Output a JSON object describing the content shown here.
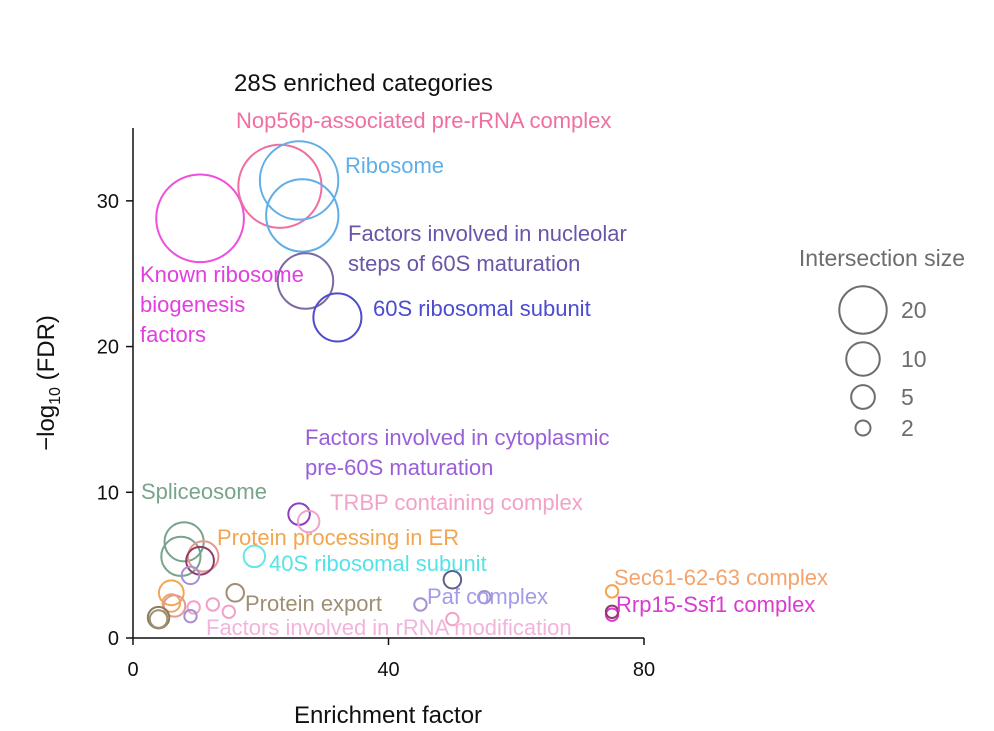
{
  "chart_data": {
    "type": "scatter",
    "title": "28S enriched categories",
    "xlabel": "Enrichment factor",
    "ylabel": "−log",
    "ylabel_sub": "10",
    "ylabel_tail": " (FDR)",
    "xlim": [
      0,
      80
    ],
    "ylim": [
      0,
      35
    ],
    "xticks": [
      0,
      40,
      80
    ],
    "yticks": [
      0,
      10,
      20,
      30
    ],
    "grid": false,
    "legend": {
      "title": "Intersection size",
      "position": "right",
      "sizes": [
        {
          "label": "20",
          "value": 20
        },
        {
          "label": "10",
          "value": 10
        },
        {
          "label": "5",
          "value": 5
        },
        {
          "label": "2",
          "value": 2
        }
      ]
    },
    "points": [
      {
        "x": 10.5,
        "y": 28.8,
        "size": 50,
        "color": "#ef4fdb"
      },
      {
        "x": 23,
        "y": 31,
        "size": 45,
        "color": "#ef6fa2"
      },
      {
        "x": 26,
        "y": 31.4,
        "size": 40,
        "color": "#60aee8"
      },
      {
        "x": 26.5,
        "y": 29,
        "size": 34,
        "color": "#60aee8"
      },
      {
        "x": 27,
        "y": 24.5,
        "size": 20,
        "color": "#7d6aa0"
      },
      {
        "x": 32,
        "y": 22,
        "size": 15,
        "color": "#4b4cd0"
      },
      {
        "x": 26,
        "y": 8.5,
        "size": 3,
        "color": "#8a3fc6"
      },
      {
        "x": 27.5,
        "y": 8,
        "size": 3,
        "color": "#f2a2c8"
      },
      {
        "x": 8,
        "y": 6.6,
        "size": 10,
        "color": "#79a48c"
      },
      {
        "x": 7.5,
        "y": 5.6,
        "size": 10,
        "color": "#79a48c"
      },
      {
        "x": 11,
        "y": 5.6,
        "size": 6,
        "color": "#e6998e"
      },
      {
        "x": 10.5,
        "y": 5.3,
        "size": 5,
        "color": "#903d6a"
      },
      {
        "x": 19,
        "y": 5.6,
        "size": 3,
        "color": "#6be4e4"
      },
      {
        "x": 9,
        "y": 4.3,
        "size": 2,
        "color": "#a78fd2"
      },
      {
        "x": 6,
        "y": 3.1,
        "size": 4,
        "color": "#f2a64f"
      },
      {
        "x": 6,
        "y": 2.4,
        "size": 2,
        "color": "#e6a96b"
      },
      {
        "x": 6.5,
        "y": 2.2,
        "size": 3,
        "color": "#e6998e"
      },
      {
        "x": 4,
        "y": 1.4,
        "size": 3,
        "color": "#8b7c5d"
      },
      {
        "x": 4,
        "y": 1.3,
        "size": 2,
        "color": "#9f8f72"
      },
      {
        "x": 9.5,
        "y": 2.1,
        "size": 1,
        "color": "#f2a2c8"
      },
      {
        "x": 12.5,
        "y": 2.3,
        "size": 1,
        "color": "#f29fc5"
      },
      {
        "x": 9,
        "y": 1.5,
        "size": 1,
        "color": "#a78fd2"
      },
      {
        "x": 15,
        "y": 1.8,
        "size": 1,
        "color": "#f2a2c8"
      },
      {
        "x": 16,
        "y": 3.1,
        "size": 2,
        "color": "#9f8f72"
      },
      {
        "x": 45,
        "y": 2.3,
        "size": 1,
        "color": "#a78fd2"
      },
      {
        "x": 50,
        "y": 4,
        "size": 2,
        "color": "#5c5f8e"
      },
      {
        "x": 50,
        "y": 1.3,
        "size": 1,
        "color": "#f2a2c8"
      },
      {
        "x": 55,
        "y": 2.8,
        "size": 1,
        "color": "#a78fd2"
      },
      {
        "x": 75,
        "y": 3.2,
        "size": 1,
        "color": "#f2a64f"
      },
      {
        "x": 75,
        "y": 1.6,
        "size": 1,
        "color": "#d93bcf"
      },
      {
        "x": 75,
        "y": 1.8,
        "size": 1,
        "color": "#903d6a"
      }
    ],
    "annotations": [
      {
        "lines": [
          "Nop56p-associated pre-rRNA complex"
        ],
        "color": "#ef6fa2"
      },
      {
        "lines": [
          "Ribosome"
        ],
        "color": "#60aee8"
      },
      {
        "lines": [
          "Factors involved in nucleolar",
          "steps of 60S maturation"
        ],
        "color": "#6a55a8"
      },
      {
        "lines": [
          "Known ribosome",
          "biogenesis",
          "factors"
        ],
        "color": "#e13fe0"
      },
      {
        "lines": [
          "60S ribosomal subunit"
        ],
        "color": "#4b4cd0"
      },
      {
        "lines": [
          "Factors involved in cytoplasmic",
          "pre-60S maturation"
        ],
        "color": "#9a5fd8"
      },
      {
        "lines": [
          "Spliceosome"
        ],
        "color": "#79a48c"
      },
      {
        "lines": [
          "TRBP containing complex"
        ],
        "color": "#f2a2c8"
      },
      {
        "lines": [
          "Protein processing in ER"
        ],
        "color": "#f2a64f"
      },
      {
        "lines": [
          "40S ribosomal subunit"
        ],
        "color": "#54e3e8"
      },
      {
        "lines": [
          "Protein export"
        ],
        "color": "#9f8f72"
      },
      {
        "lines": [
          "Paf complex"
        ],
        "color": "#a29ce8"
      },
      {
        "lines": [
          "Factors involved in rRNA modification"
        ],
        "color": "#f2b3dc"
      },
      {
        "lines": [
          "Sec61-62-63 complex"
        ],
        "color": "#f2a46c"
      },
      {
        "lines": [
          "Rrp15-Ssf1 complex"
        ],
        "color": "#d93bcf"
      }
    ]
  }
}
